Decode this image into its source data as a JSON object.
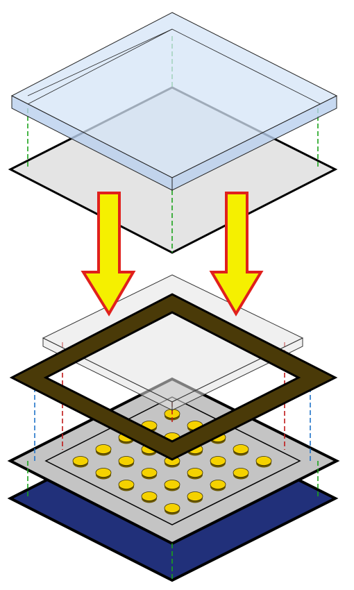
{
  "colors": {
    "glass_top": "#d4e4f7",
    "glass_front": "#b9d0ee",
    "glass_edge": "#1a1a1a",
    "plate_gray": "#e4e4e4",
    "arrow_fill": "#f5f000",
    "arrow_stroke": "#e0201c",
    "frame_dark": "#4a3a08",
    "substrate_gray": "#c4c4c4",
    "base_blue": "#21307a",
    "bump_yellow": "#f5d200",
    "bump_edge": "#6b5800",
    "guide_green": "#1aa31a",
    "guide_red": "#c01818",
    "guide_blue": "#1f73c8"
  },
  "icons": {
    "arrow": "down-arrow-icon",
    "bump": "solder-bump-icon"
  }
}
